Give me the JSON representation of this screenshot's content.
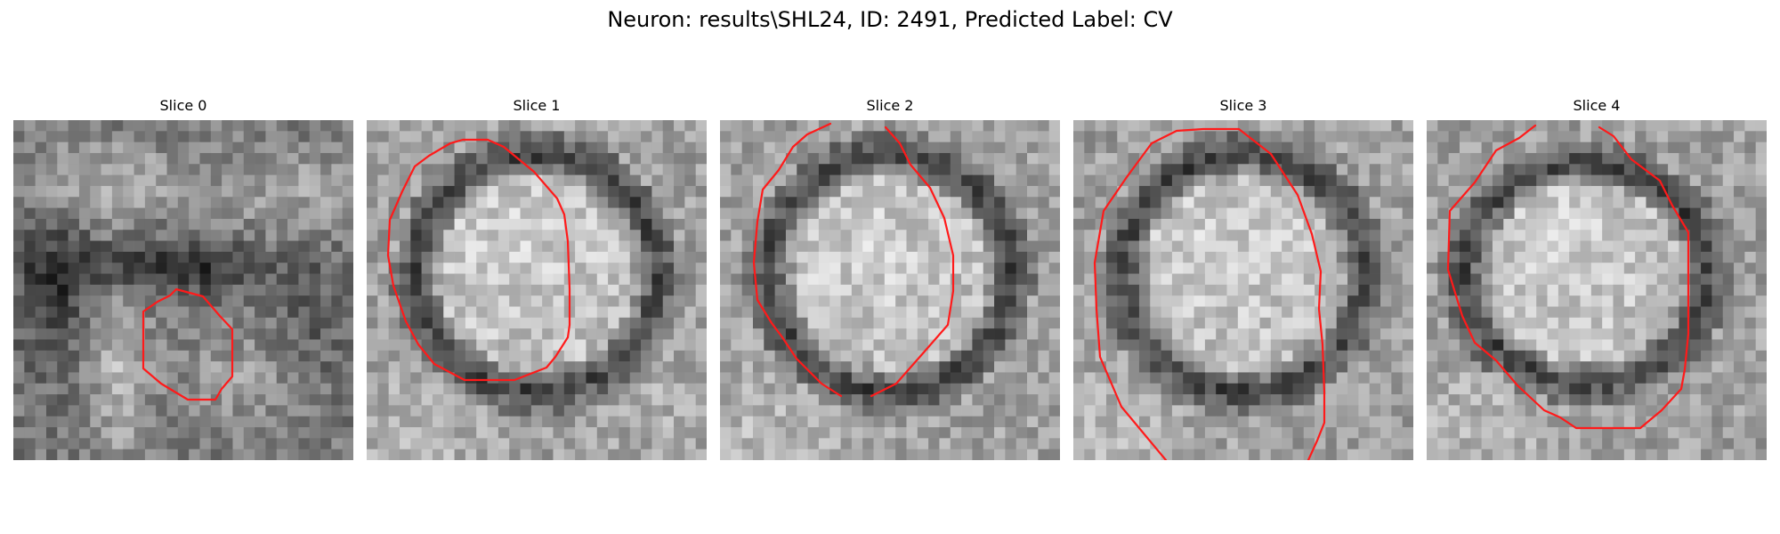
{
  "figure": {
    "title": "Neuron: results\\SHL24, ID: 2491, Predicted Label: CV"
  },
  "panels": [
    {
      "title": "Slice 0",
      "pattern": "background",
      "contour": "partial-lower-oval"
    },
    {
      "title": "Slice 1",
      "pattern": "cell-oval",
      "contour": "closed-oval"
    },
    {
      "title": "Slice 2",
      "pattern": "cell-oval",
      "contour": "open-oval"
    },
    {
      "title": "Slice 3",
      "pattern": "cell-oval",
      "contour": "open-oval"
    },
    {
      "title": "Slice 4",
      "pattern": "cell-oval",
      "contour": "open-oval"
    }
  ],
  "colors": {
    "contour": "#ff1a1a",
    "dark": "#202020",
    "light": "#f4f4f4",
    "mid": "#8e8e8e"
  },
  "legend": {
    "shown": false
  }
}
